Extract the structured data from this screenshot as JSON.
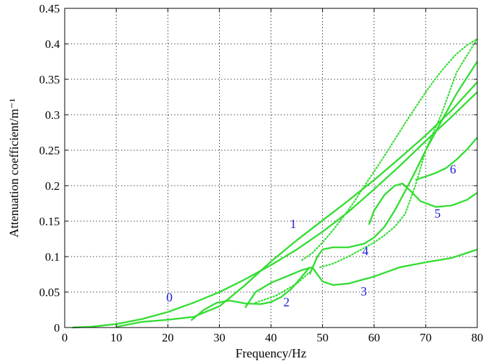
{
  "chart_data": {
    "type": "line",
    "title": "",
    "xlabel": "Frequency/Hz",
    "ylabel": "Attenuation coefficient/m⁻¹",
    "xlim": [
      0,
      80
    ],
    "ylim": [
      0,
      0.45
    ],
    "xticks": [
      0,
      10,
      20,
      30,
      40,
      50,
      60,
      70,
      80
    ],
    "yticks": [
      0,
      0.05,
      0.1,
      0.15,
      0.2,
      0.25,
      0.3,
      0.35,
      0.4,
      0.45
    ],
    "xtick_labels": [
      "0",
      "10",
      "20",
      "30",
      "40",
      "50",
      "60",
      "70",
      "80"
    ],
    "ytick_labels": [
      "0",
      "0.05",
      "0.1",
      "0.15",
      "0.2",
      "0.25",
      "0.3",
      "0.35",
      "0.4",
      "0.45"
    ],
    "grid": true,
    "line_color": "#33dd33",
    "label_color": "#1a1adb",
    "series": [
      {
        "name": "0",
        "x": [
          1.5,
          5,
          10,
          15,
          20,
          25,
          30,
          35,
          40,
          45,
          50,
          55,
          60,
          65,
          70,
          75,
          80
        ],
        "y": [
          0,
          0.001,
          0.005,
          0.012,
          0.022,
          0.035,
          0.05,
          0.068,
          0.088,
          0.11,
          0.135,
          0.163,
          0.195,
          0.228,
          0.263,
          0.297,
          0.332
        ]
      },
      {
        "name": "1",
        "x": [
          10,
          15,
          20,
          25,
          30,
          35,
          40,
          45,
          50,
          55,
          60,
          65,
          70,
          75,
          80
        ],
        "y": [
          0.001,
          0.008,
          0.011,
          0.015,
          0.03,
          0.06,
          0.093,
          0.123,
          0.151,
          0.179,
          0.208,
          0.239,
          0.271,
          0.306,
          0.346
        ]
      },
      {
        "name": "2",
        "x": [
          24.5,
          27,
          29.5,
          32,
          35,
          38,
          40,
          42,
          44,
          46,
          47.5
        ],
        "y": [
          0.01,
          0.025,
          0.035,
          0.038,
          0.034,
          0.033,
          0.036,
          0.043,
          0.055,
          0.072,
          0.085
        ]
      },
      {
        "name": "3",
        "x": [
          35,
          37,
          40,
          43,
          46,
          48,
          49,
          50,
          52,
          55,
          60,
          65,
          70,
          75,
          80
        ],
        "y": [
          0.028,
          0.05,
          0.063,
          0.072,
          0.081,
          0.085,
          0.075,
          0.065,
          0.06,
          0.062,
          0.072,
          0.085,
          0.092,
          0.098,
          0.11
        ]
      },
      {
        "name": "4",
        "x": [
          47.5,
          49,
          50,
          52,
          55,
          58,
          60,
          62,
          64,
          66,
          68,
          70,
          73,
          76,
          80
        ],
        "y": [
          0.075,
          0.1,
          0.11,
          0.113,
          0.113,
          0.118,
          0.127,
          0.142,
          0.165,
          0.192,
          0.22,
          0.25,
          0.29,
          0.33,
          0.375
        ]
      },
      {
        "name": "5",
        "x": [
          59,
          60,
          62,
          64,
          65.5,
          67,
          69,
          72,
          75,
          78,
          80
        ],
        "y": [
          0.145,
          0.165,
          0.187,
          0.2,
          0.203,
          0.193,
          0.178,
          0.17,
          0.172,
          0.18,
          0.19
        ]
      },
      {
        "name": "6",
        "x": [
          68,
          70,
          72,
          74,
          76,
          78,
          80
        ],
        "y": [
          0.208,
          0.213,
          0.218,
          0.225,
          0.237,
          0.251,
          0.268
        ]
      }
    ],
    "dotted_series": [
      {
        "x": [
          37,
          41,
          45,
          47.5
        ],
        "y": [
          0.035,
          0.045,
          0.062,
          0.078
        ]
      },
      {
        "x": [
          46,
          48,
          50,
          52,
          54,
          56,
          58,
          60,
          62,
          64,
          66,
          68,
          70,
          72,
          74,
          76,
          78,
          80
        ],
        "y": [
          0.095,
          0.105,
          0.12,
          0.137,
          0.156,
          0.176,
          0.198,
          0.22,
          0.242,
          0.265,
          0.288,
          0.31,
          0.332,
          0.352,
          0.37,
          0.386,
          0.398,
          0.407
        ]
      },
      {
        "x": [
          49.5,
          52,
          55,
          58,
          60,
          62,
          64,
          66,
          68,
          70,
          73,
          76,
          80
        ],
        "y": [
          0.085,
          0.09,
          0.1,
          0.112,
          0.12,
          0.13,
          0.142,
          0.16,
          0.2,
          0.25,
          0.3,
          0.36,
          0.407
        ]
      }
    ],
    "annotations": [
      {
        "text": "0",
        "x": 20.3,
        "y": 0.037
      },
      {
        "text": "1",
        "x": 44.3,
        "y": 0.14
      },
      {
        "text": "2",
        "x": 43,
        "y": 0.03
      },
      {
        "text": "3",
        "x": 58,
        "y": 0.045
      },
      {
        "text": "4",
        "x": 58.3,
        "y": 0.102
      },
      {
        "text": "5",
        "x": 72.3,
        "y": 0.155
      },
      {
        "text": "6",
        "x": 75.3,
        "y": 0.217
      }
    ]
  }
}
